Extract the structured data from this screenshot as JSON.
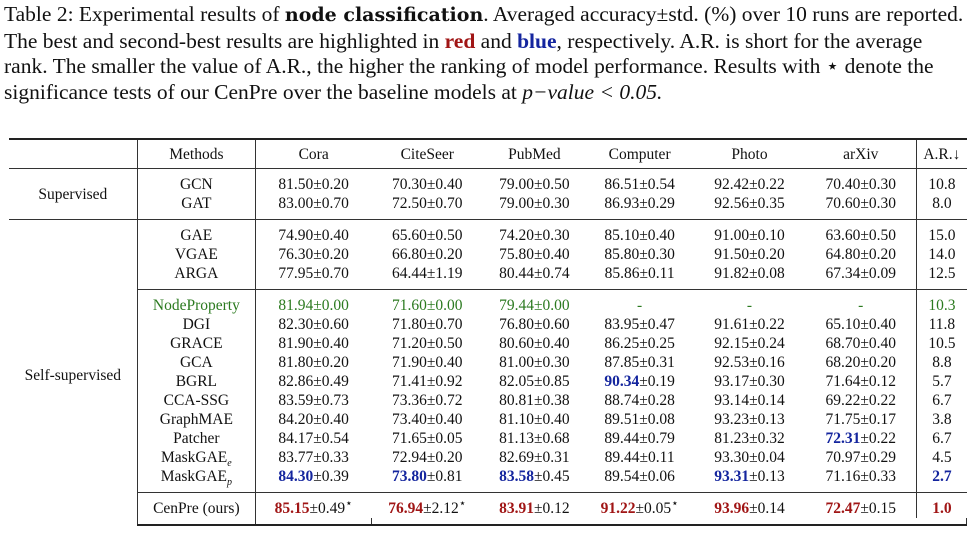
{
  "caption": {
    "prefix": "Table 2: Experimental results of ",
    "bold": "node classification",
    "after_bold": ". Averaged accuracy±std. (%) over 10 runs are reported. The best and second-best results are highlighted in ",
    "red_word": "red",
    "and_word": " and ",
    "blue_word": "blue",
    "after_blue": ", respectively. A.R. is short for the average rank. The smaller the value of A.R., the higher the ranking of model performance. Results with ",
    "star": "⋆",
    "after_star": " denote the significance tests of our CenPre over the baseline models at ",
    "pvalue": "p−value < 0.05."
  },
  "headers": [
    "Methods",
    "Cora",
    "CiteSeer",
    "PubMed",
    "Computer",
    "Photo",
    "arXiv",
    "A.R.↓"
  ],
  "groups": {
    "supervised": "Supervised",
    "self_supervised": "Self-supervised"
  },
  "rows": {
    "gcn": {
      "name": "GCN",
      "vals": [
        "81.50±0.20",
        "70.30±0.40",
        "79.00±0.50",
        "86.51±0.54",
        "92.42±0.22",
        "70.40±0.30"
      ],
      "ar": "10.8"
    },
    "gat": {
      "name": "GAT",
      "vals": [
        "83.00±0.70",
        "72.50±0.70",
        "79.00±0.30",
        "86.93±0.29",
        "92.56±0.35",
        "70.60±0.30"
      ],
      "ar": "8.0"
    },
    "gae": {
      "name": "GAE",
      "vals": [
        "74.90±0.40",
        "65.60±0.50",
        "74.20±0.30",
        "85.10±0.40",
        "91.00±0.10",
        "63.60±0.50"
      ],
      "ar": "15.0"
    },
    "vgae": {
      "name": "VGAE",
      "vals": [
        "76.30±0.20",
        "66.80±0.20",
        "75.80±0.40",
        "85.80±0.30",
        "91.50±0.20",
        "64.80±0.20"
      ],
      "ar": "14.0"
    },
    "arga": {
      "name": "ARGA",
      "vals": [
        "77.95±0.70",
        "64.44±1.19",
        "80.44±0.74",
        "85.86±0.11",
        "91.82±0.08",
        "67.34±0.09"
      ],
      "ar": "12.5"
    },
    "nodeprop": {
      "name": "NodeProperty",
      "vals": [
        "81.94±0.00",
        "71.60±0.00",
        "79.44±0.00",
        "-",
        "-",
        "-"
      ],
      "ar": "10.3"
    },
    "dgi": {
      "name": "DGI",
      "vals": [
        "82.30±0.60",
        "71.80±0.70",
        "76.80±0.60",
        "83.95±0.47",
        "91.61±0.22",
        "65.10±0.40"
      ],
      "ar": "11.8"
    },
    "grace": {
      "name": "GRACE",
      "vals": [
        "81.90±0.40",
        "71.20±0.50",
        "80.60±0.40",
        "86.25±0.25",
        "92.15±0.24",
        "68.70±0.40"
      ],
      "ar": "10.5"
    },
    "gca": {
      "name": "GCA",
      "vals": [
        "81.80±0.20",
        "71.90±0.40",
        "81.00±0.30",
        "87.85±0.31",
        "92.53±0.16",
        "68.20±0.20"
      ],
      "ar": "8.8"
    },
    "bgrl": {
      "name": "BGRL",
      "vals": [
        "82.86±0.49",
        "71.41±0.92",
        "82.05±0.85",
        "",
        "93.17±0.30",
        "71.64±0.12"
      ],
      "computer_hl": "90.34",
      "computer_std": "±0.19",
      "ar": "5.7"
    },
    "ccassg": {
      "name": "CCA-SSG",
      "vals": [
        "83.59±0.73",
        "73.36±0.72",
        "80.81±0.38",
        "88.74±0.28",
        "93.14±0.14",
        "69.22±0.22"
      ],
      "ar": "6.7"
    },
    "graphmae": {
      "name": "GraphMAE",
      "vals": [
        "84.20±0.40",
        "73.40±0.40",
        "81.10±0.40",
        "89.51±0.08",
        "93.23±0.13",
        "71.75±0.17"
      ],
      "ar": "3.8"
    },
    "patcher": {
      "name": "Patcher",
      "vals": [
        "84.17±0.54",
        "71.65±0.05",
        "81.13±0.68",
        "89.44±0.79",
        "81.23±0.32",
        ""
      ],
      "arxiv_hl": "72.31",
      "arxiv_std": "±0.22",
      "ar": "6.7"
    },
    "maskgae_e": {
      "name": "MaskGAE",
      "sub": "e",
      "vals": [
        "83.77±0.33",
        "72.94±0.20",
        "82.69±0.31",
        "89.44±0.11",
        "93.30±0.04",
        "70.97±0.29"
      ],
      "ar": "4.5"
    },
    "maskgae_p": {
      "name": "MaskGAE",
      "sub": "p",
      "cora_hl": "84.30",
      "cora_std": "±0.39",
      "citeseer_hl": "73.80",
      "citeseer_std": "±0.81",
      "pubmed_hl": "83.58",
      "pubmed_std": "±0.45",
      "computer": "89.54±0.06",
      "photo_hl": "93.31",
      "photo_std": "±0.13",
      "arxiv": "71.16±0.33",
      "ar": "2.7"
    },
    "cenpre": {
      "name": "CenPre (ours)",
      "cora_hl": "85.15",
      "cora_std": "±0.49",
      "star": "⋆",
      "citeseer_hl": "76.94",
      "citeseer_std": "±2.12",
      "pubmed_hl": "83.91",
      "pubmed_std": "±0.12",
      "computer_hl": "91.22",
      "computer_std": "±0.05",
      "photo_hl": "93.96",
      "photo_std": "±0.14",
      "arxiv_hl": "72.47",
      "arxiv_std": "±0.15",
      "ar": "1.0"
    }
  }
}
